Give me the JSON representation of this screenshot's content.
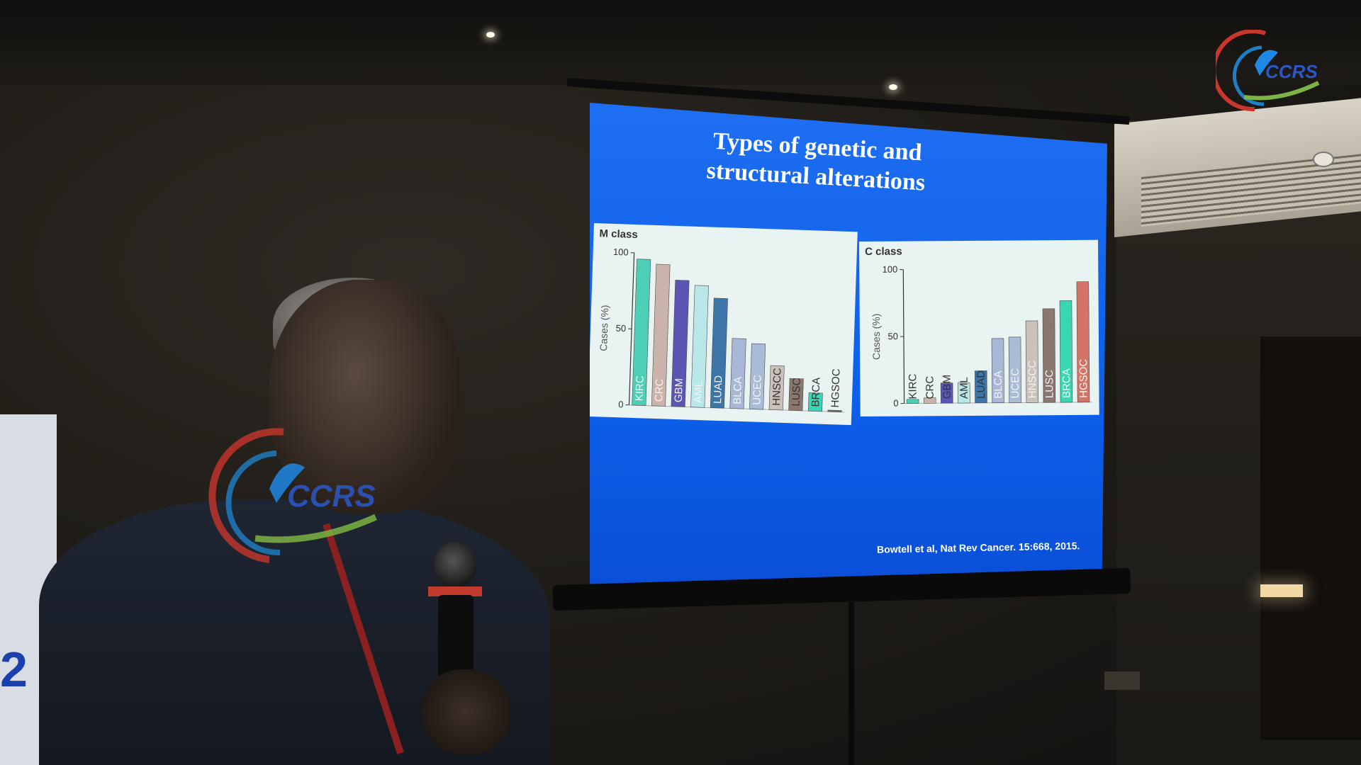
{
  "slide": {
    "title": "Types of genetic and structural alterations",
    "citation": "Bowtell et al, Nat Rev Cancer. 15:668, 2015."
  },
  "watermark": {
    "text": "CCRS"
  },
  "colors": {
    "slide_bg": "#1066ee",
    "panel_bg": "#e9f3f2"
  },
  "chart_data": [
    {
      "type": "bar",
      "panel_label": "M class",
      "ylabel": "Cases (%)",
      "ylim": [
        0,
        100
      ],
      "yticks": [
        0,
        50,
        100
      ],
      "categories": [
        "KIRC",
        "CRC",
        "GBM",
        "AML",
        "LUAD",
        "BLCA",
        "UCEC",
        "HNSCC",
        "LUSC",
        "BRCA",
        "HGSOC"
      ],
      "values": [
        96,
        93,
        83,
        80,
        72,
        46,
        43,
        29,
        21,
        12,
        1
      ],
      "bar_colors": [
        "#4dcfb6",
        "#c9b3aa",
        "#5b56b3",
        "#b9e7e7",
        "#3c76a8",
        "#a9b7d6",
        "#a9bcd6",
        "#cbc1bb",
        "#8a7770",
        "#38d6b2",
        "#7a6a66"
      ],
      "grid": false,
      "legend": "none"
    },
    {
      "type": "bar",
      "panel_label": "C class",
      "ylabel": "Cases (%)",
      "ylim": [
        0,
        100
      ],
      "yticks": [
        0,
        50,
        100
      ],
      "categories": [
        "KIRC",
        "CRC",
        "GBM",
        "AML",
        "LUAD",
        "BLCA",
        "UCEC",
        "HNSCC",
        "LUSC",
        "BRCA",
        "HGSOC"
      ],
      "values": [
        3,
        4,
        15,
        15,
        24,
        48,
        49,
        61,
        70,
        76,
        90
      ],
      "bar_colors": [
        "#4dcfb6",
        "#c9b3aa",
        "#5b56b3",
        "#b9e7e7",
        "#3c76a8",
        "#a9b7d6",
        "#a9bcd6",
        "#cbc1bb",
        "#8a7770",
        "#38d6b2",
        "#d27466"
      ],
      "grid": false,
      "legend": "none"
    }
  ]
}
